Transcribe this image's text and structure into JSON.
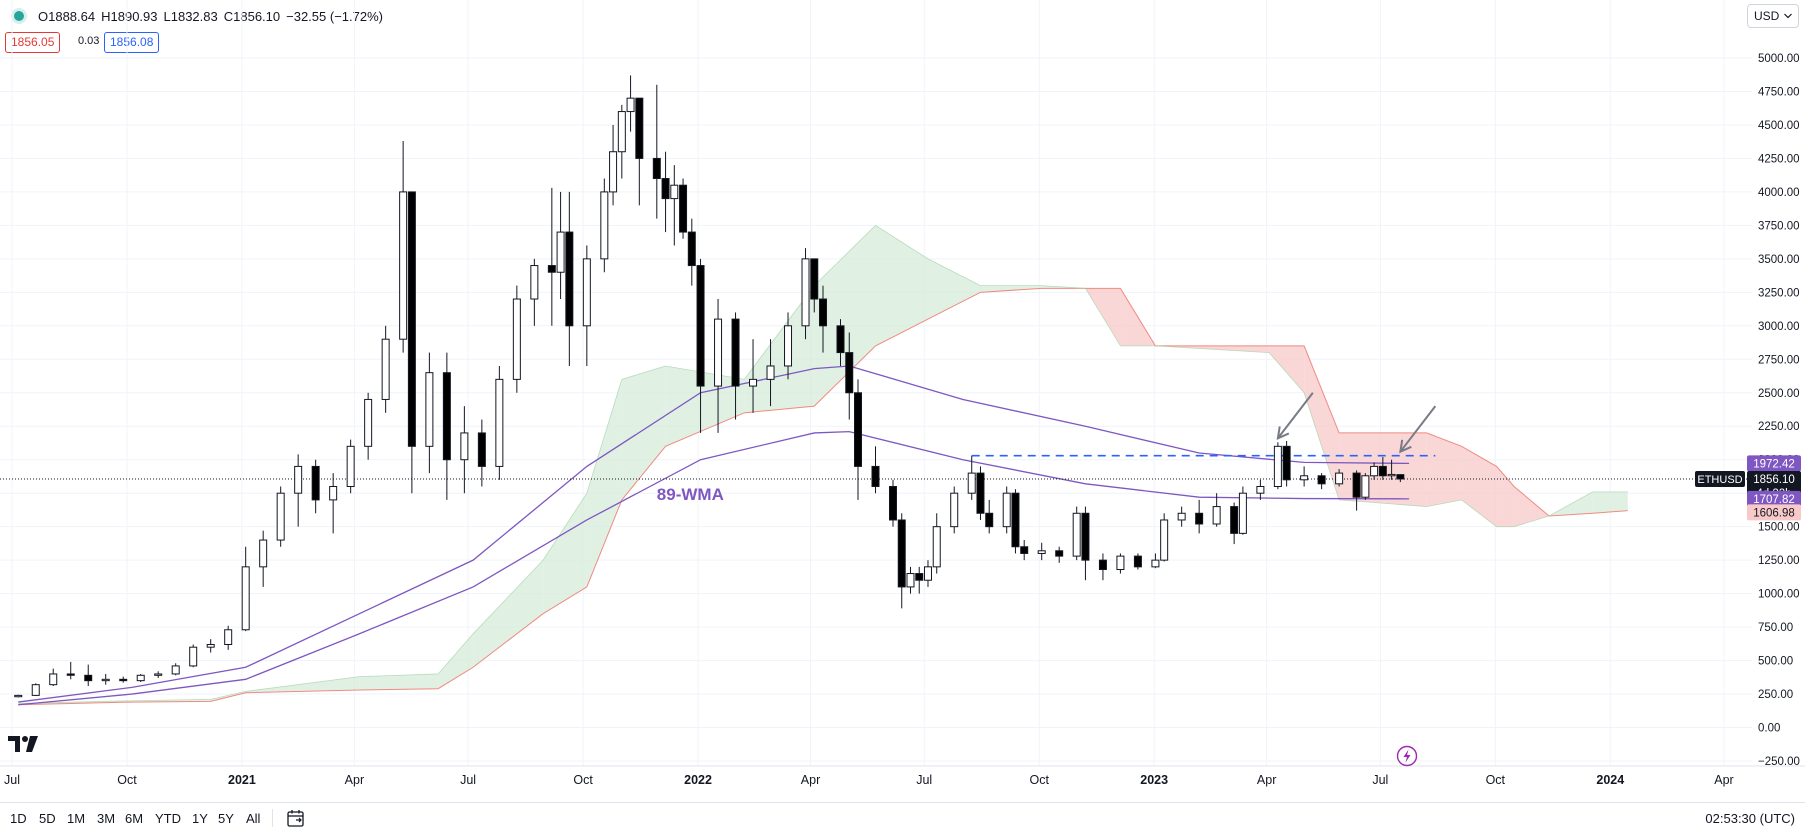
{
  "header": {
    "open": "O1888.64",
    "high": "H1890.93",
    "low": "L1832.83",
    "close": "C1856.10",
    "change": "−32.55 (−1.72%)",
    "bid": "1856.05",
    "spread": "0.03",
    "ask": "1856.08",
    "currency": "USD"
  },
  "range_buttons": [
    "1D",
    "5D",
    "1M",
    "3M",
    "6M",
    "YTD",
    "1Y",
    "5Y",
    "All"
  ],
  "time_readout": "02:53:30 (UTC)",
  "colors": {
    "up_fill": "#ffffff",
    "down_fill": "#000000",
    "wma": "#7e57c2",
    "cloud_bear": "#f8c9c9",
    "cloud_bull": "#d6ecd9",
    "cloud_line": "#f08a80",
    "dashed_line": "#2962ff",
    "text_red": "#e53935",
    "text_blue": "#2962ff"
  },
  "chart_data": {
    "type": "candlestick",
    "symbol": "ETHUSD",
    "timeframe": "weekly",
    "ylim": [
      -250,
      5000
    ],
    "y_ticks": [
      "5000.00",
      "4750.00",
      "4500.00",
      "4250.00",
      "4000.00",
      "3750.00",
      "3500.00",
      "3250.00",
      "3000.00",
      "2750.00",
      "2500.00",
      "2250.00",
      "2000.00",
      "1750.00",
      "1500.00",
      "1250.00",
      "1000.00",
      "750.00",
      "500.00",
      "250.00",
      "0.00",
      "−250.00"
    ],
    "x_ticks": [
      {
        "label": "Jul",
        "date": "2020-07-01"
      },
      {
        "label": "Oct",
        "date": "2020-10-01"
      },
      {
        "label": "2021",
        "date": "2021-01-01",
        "bold": true
      },
      {
        "label": "Apr",
        "date": "2021-04-01"
      },
      {
        "label": "Jul",
        "date": "2021-07-01"
      },
      {
        "label": "Oct",
        "date": "2021-10-01"
      },
      {
        "label": "2022",
        "date": "2022-01-01",
        "bold": true
      },
      {
        "label": "Apr",
        "date": "2022-04-01"
      },
      {
        "label": "Jul",
        "date": "2022-07-01"
      },
      {
        "label": "Oct",
        "date": "2022-10-01"
      },
      {
        "label": "2023",
        "date": "2023-01-01",
        "bold": true
      },
      {
        "label": "Apr",
        "date": "2023-04-01"
      },
      {
        "label": "Jul",
        "date": "2023-07-01"
      },
      {
        "label": "Oct",
        "date": "2023-10-01"
      },
      {
        "label": "2024",
        "date": "2024-01-01",
        "bold": true
      },
      {
        "label": "Apr",
        "date": "2024-04-01"
      }
    ],
    "candles": [
      {
        "date": "2020-07-06",
        "o": 230,
        "h": 245,
        "l": 225,
        "c": 240
      },
      {
        "date": "2020-07-20",
        "o": 240,
        "h": 330,
        "l": 235,
        "c": 320
      },
      {
        "date": "2020-08-03",
        "o": 320,
        "h": 440,
        "l": 310,
        "c": 400
      },
      {
        "date": "2020-08-17",
        "o": 400,
        "h": 490,
        "l": 360,
        "c": 390
      },
      {
        "date": "2020-08-31",
        "o": 390,
        "h": 470,
        "l": 310,
        "c": 350
      },
      {
        "date": "2020-09-14",
        "o": 350,
        "h": 400,
        "l": 320,
        "c": 360
      },
      {
        "date": "2020-09-28",
        "o": 360,
        "h": 380,
        "l": 335,
        "c": 350
      },
      {
        "date": "2020-10-12",
        "o": 350,
        "h": 400,
        "l": 340,
        "c": 390
      },
      {
        "date": "2020-10-26",
        "o": 390,
        "h": 420,
        "l": 370,
        "c": 400
      },
      {
        "date": "2020-11-09",
        "o": 400,
        "h": 480,
        "l": 390,
        "c": 460
      },
      {
        "date": "2020-11-23",
        "o": 460,
        "h": 620,
        "l": 450,
        "c": 600
      },
      {
        "date": "2020-12-07",
        "o": 600,
        "h": 660,
        "l": 560,
        "c": 620
      },
      {
        "date": "2020-12-21",
        "o": 620,
        "h": 760,
        "l": 580,
        "c": 730
      },
      {
        "date": "2021-01-04",
        "o": 730,
        "h": 1350,
        "l": 720,
        "c": 1200
      },
      {
        "date": "2021-01-18",
        "o": 1200,
        "h": 1470,
        "l": 1050,
        "c": 1400
      },
      {
        "date": "2021-02-01",
        "o": 1400,
        "h": 1800,
        "l": 1350,
        "c": 1750
      },
      {
        "date": "2021-02-15",
        "o": 1750,
        "h": 2040,
        "l": 1500,
        "c": 1950
      },
      {
        "date": "2021-03-01",
        "o": 1950,
        "h": 2000,
        "l": 1600,
        "c": 1700
      },
      {
        "date": "2021-03-15",
        "o": 1700,
        "h": 1900,
        "l": 1450,
        "c": 1800
      },
      {
        "date": "2021-03-29",
        "o": 1800,
        "h": 2150,
        "l": 1750,
        "c": 2100
      },
      {
        "date": "2021-04-12",
        "o": 2100,
        "h": 2500,
        "l": 2000,
        "c": 2450
      },
      {
        "date": "2021-04-26",
        "o": 2450,
        "h": 3000,
        "l": 2350,
        "c": 2900
      },
      {
        "date": "2021-05-10",
        "o": 2900,
        "h": 4380,
        "l": 2800,
        "c": 4000
      },
      {
        "date": "2021-05-17",
        "o": 4000,
        "h": 4000,
        "l": 1750,
        "c": 2100
      },
      {
        "date": "2021-05-31",
        "o": 2100,
        "h": 2800,
        "l": 1900,
        "c": 2650
      },
      {
        "date": "2021-06-14",
        "o": 2650,
        "h": 2800,
        "l": 1700,
        "c": 2000
      },
      {
        "date": "2021-06-28",
        "o": 2000,
        "h": 2400,
        "l": 1750,
        "c": 2200
      },
      {
        "date": "2021-07-12",
        "o": 2200,
        "h": 2300,
        "l": 1800,
        "c": 1950
      },
      {
        "date": "2021-07-26",
        "o": 1950,
        "h": 2700,
        "l": 1850,
        "c": 2600
      },
      {
        "date": "2021-08-09",
        "o": 2600,
        "h": 3300,
        "l": 2500,
        "c": 3200
      },
      {
        "date": "2021-08-23",
        "o": 3200,
        "h": 3500,
        "l": 3000,
        "c": 3450
      },
      {
        "date": "2021-09-06",
        "o": 3450,
        "h": 4030,
        "l": 3000,
        "c": 3400
      },
      {
        "date": "2021-09-13",
        "o": 3400,
        "h": 4000,
        "l": 3200,
        "c": 3700
      },
      {
        "date": "2021-09-20",
        "o": 3700,
        "h": 4000,
        "l": 2700,
        "c": 3000
      },
      {
        "date": "2021-10-04",
        "o": 3000,
        "h": 3600,
        "l": 2700,
        "c": 3500
      },
      {
        "date": "2021-10-18",
        "o": 3500,
        "h": 4100,
        "l": 3400,
        "c": 4000
      },
      {
        "date": "2021-10-25",
        "o": 4000,
        "h": 4500,
        "l": 3900,
        "c": 4300
      },
      {
        "date": "2021-11-01",
        "o": 4300,
        "h": 4650,
        "l": 4100,
        "c": 4600
      },
      {
        "date": "2021-11-08",
        "o": 4600,
        "h": 4870,
        "l": 4450,
        "c": 4700
      },
      {
        "date": "2021-11-15",
        "o": 4700,
        "h": 4700,
        "l": 3900,
        "c": 4250
      },
      {
        "date": "2021-11-29",
        "o": 4250,
        "h": 4800,
        "l": 3800,
        "c": 4100
      },
      {
        "date": "2021-12-06",
        "o": 4100,
        "h": 4300,
        "l": 3700,
        "c": 3950
      },
      {
        "date": "2021-12-13",
        "o": 3950,
        "h": 4200,
        "l": 3600,
        "c": 4050
      },
      {
        "date": "2021-12-20",
        "o": 4050,
        "h": 4100,
        "l": 3650,
        "c": 3700
      },
      {
        "date": "2021-12-27",
        "o": 3700,
        "h": 3800,
        "l": 3300,
        "c": 3450
      },
      {
        "date": "2022-01-03",
        "o": 3450,
        "h": 3500,
        "l": 2200,
        "c": 2550
      },
      {
        "date": "2022-01-17",
        "o": 2550,
        "h": 3200,
        "l": 2200,
        "c": 3050
      },
      {
        "date": "2022-01-31",
        "o": 3050,
        "h": 3100,
        "l": 2300,
        "c": 2550
      },
      {
        "date": "2022-02-14",
        "o": 2550,
        "h": 2900,
        "l": 2350,
        "c": 2600
      },
      {
        "date": "2022-02-28",
        "o": 2600,
        "h": 2900,
        "l": 2400,
        "c": 2700
      },
      {
        "date": "2022-03-14",
        "o": 2700,
        "h": 3100,
        "l": 2600,
        "c": 3000
      },
      {
        "date": "2022-03-28",
        "o": 3000,
        "h": 3580,
        "l": 2900,
        "c": 3500
      },
      {
        "date": "2022-04-04",
        "o": 3500,
        "h": 3500,
        "l": 3100,
        "c": 3200
      },
      {
        "date": "2022-04-11",
        "o": 3200,
        "h": 3300,
        "l": 2800,
        "c": 3000
      },
      {
        "date": "2022-04-25",
        "o": 3000,
        "h": 3050,
        "l": 2700,
        "c": 2800
      },
      {
        "date": "2022-05-02",
        "o": 2800,
        "h": 2950,
        "l": 2300,
        "c": 2500
      },
      {
        "date": "2022-05-09",
        "o": 2500,
        "h": 2600,
        "l": 1700,
        "c": 1950
      },
      {
        "date": "2022-05-23",
        "o": 1950,
        "h": 2100,
        "l": 1750,
        "c": 1800
      },
      {
        "date": "2022-06-06",
        "o": 1800,
        "h": 1850,
        "l": 1500,
        "c": 1550
      },
      {
        "date": "2022-06-13",
        "o": 1550,
        "h": 1600,
        "l": 890,
        "c": 1050
      },
      {
        "date": "2022-06-20",
        "o": 1050,
        "h": 1200,
        "l": 1000,
        "c": 1150
      },
      {
        "date": "2022-06-27",
        "o": 1150,
        "h": 1200,
        "l": 1000,
        "c": 1100
      },
      {
        "date": "2022-07-04",
        "o": 1100,
        "h": 1250,
        "l": 1050,
        "c": 1200
      },
      {
        "date": "2022-07-11",
        "o": 1200,
        "h": 1600,
        "l": 1150,
        "c": 1500
      },
      {
        "date": "2022-07-25",
        "o": 1500,
        "h": 1800,
        "l": 1450,
        "c": 1750
      },
      {
        "date": "2022-08-08",
        "o": 1750,
        "h": 2030,
        "l": 1700,
        "c": 1900
      },
      {
        "date": "2022-08-15",
        "o": 1900,
        "h": 1950,
        "l": 1550,
        "c": 1600
      },
      {
        "date": "2022-08-22",
        "o": 1600,
        "h": 1700,
        "l": 1450,
        "c": 1500
      },
      {
        "date": "2022-09-05",
        "o": 1500,
        "h": 1800,
        "l": 1450,
        "c": 1750
      },
      {
        "date": "2022-09-12",
        "o": 1750,
        "h": 1780,
        "l": 1300,
        "c": 1350
      },
      {
        "date": "2022-09-19",
        "o": 1350,
        "h": 1400,
        "l": 1250,
        "c": 1300
      },
      {
        "date": "2022-10-03",
        "o": 1300,
        "h": 1380,
        "l": 1250,
        "c": 1320
      },
      {
        "date": "2022-10-17",
        "o": 1320,
        "h": 1350,
        "l": 1230,
        "c": 1280
      },
      {
        "date": "2022-10-31",
        "o": 1280,
        "h": 1650,
        "l": 1250,
        "c": 1600
      },
      {
        "date": "2022-11-07",
        "o": 1600,
        "h": 1650,
        "l": 1100,
        "c": 1250
      },
      {
        "date": "2022-11-21",
        "o": 1250,
        "h": 1300,
        "l": 1100,
        "c": 1180
      },
      {
        "date": "2022-12-05",
        "o": 1180,
        "h": 1300,
        "l": 1150,
        "c": 1280
      },
      {
        "date": "2022-12-19",
        "o": 1280,
        "h": 1300,
        "l": 1180,
        "c": 1200
      },
      {
        "date": "2023-01-02",
        "o": 1200,
        "h": 1300,
        "l": 1190,
        "c": 1250
      },
      {
        "date": "2023-01-09",
        "o": 1250,
        "h": 1600,
        "l": 1240,
        "c": 1550
      },
      {
        "date": "2023-01-23",
        "o": 1550,
        "h": 1650,
        "l": 1500,
        "c": 1600
      },
      {
        "date": "2023-02-06",
        "o": 1600,
        "h": 1700,
        "l": 1450,
        "c": 1520
      },
      {
        "date": "2023-02-20",
        "o": 1520,
        "h": 1750,
        "l": 1500,
        "c": 1650
      },
      {
        "date": "2023-03-06",
        "o": 1650,
        "h": 1680,
        "l": 1370,
        "c": 1450
      },
      {
        "date": "2023-03-13",
        "o": 1450,
        "h": 1800,
        "l": 1440,
        "c": 1750
      },
      {
        "date": "2023-03-27",
        "o": 1750,
        "h": 1850,
        "l": 1700,
        "c": 1800
      },
      {
        "date": "2023-04-10",
        "o": 1800,
        "h": 2130,
        "l": 1780,
        "c": 2100
      },
      {
        "date": "2023-04-17",
        "o": 2100,
        "h": 2140,
        "l": 1800,
        "c": 1850
      },
      {
        "date": "2023-05-01",
        "o": 1850,
        "h": 1950,
        "l": 1800,
        "c": 1880
      },
      {
        "date": "2023-05-15",
        "o": 1880,
        "h": 1900,
        "l": 1780,
        "c": 1820
      },
      {
        "date": "2023-05-29",
        "o": 1820,
        "h": 1930,
        "l": 1800,
        "c": 1900
      },
      {
        "date": "2023-06-12",
        "o": 1900,
        "h": 1920,
        "l": 1620,
        "c": 1720
      },
      {
        "date": "2023-06-19",
        "o": 1720,
        "h": 1900,
        "l": 1700,
        "c": 1880
      },
      {
        "date": "2023-06-26",
        "o": 1880,
        "h": 1980,
        "l": 1850,
        "c": 1950
      },
      {
        "date": "2023-07-03",
        "o": 1950,
        "h": 2020,
        "l": 1850,
        "c": 1880
      },
      {
        "date": "2023-07-10",
        "o": 1880,
        "h": 2000,
        "l": 1850,
        "c": 1890
      },
      {
        "date": "2023-07-17",
        "o": 1888.64,
        "h": 1890.93,
        "l": 1832.83,
        "c": 1856.1
      }
    ],
    "wma_89": [
      [
        "2020-07-06",
        170
      ],
      [
        "2020-10-05",
        250
      ],
      [
        "2021-01-04",
        360
      ],
      [
        "2021-04-05",
        700
      ],
      [
        "2021-07-05",
        1050
      ],
      [
        "2021-10-04",
        1550
      ],
      [
        "2022-01-03",
        2000
      ],
      [
        "2022-04-04",
        2200
      ],
      [
        "2022-05-02",
        2210
      ],
      [
        "2022-08-01",
        2000
      ],
      [
        "2022-11-07",
        1820
      ],
      [
        "2023-02-06",
        1720
      ],
      [
        "2023-05-01",
        1710
      ],
      [
        "2023-07-24",
        1707.82
      ]
    ],
    "wma_50": [
      [
        "2020-07-06",
        190
      ],
      [
        "2020-10-05",
        300
      ],
      [
        "2021-01-04",
        450
      ],
      [
        "2021-04-05",
        850
      ],
      [
        "2021-07-05",
        1250
      ],
      [
        "2021-10-04",
        1950
      ],
      [
        "2022-01-03",
        2500
      ],
      [
        "2022-04-04",
        2680
      ],
      [
        "2022-05-02",
        2700
      ],
      [
        "2022-08-01",
        2450
      ],
      [
        "2022-11-07",
        2250
      ],
      [
        "2023-02-06",
        2050
      ],
      [
        "2023-05-01",
        1980
      ],
      [
        "2023-07-24",
        1972.42
      ]
    ],
    "cloud": [
      {
        "date": "2020-07-06",
        "a": 180,
        "b": 170
      },
      {
        "date": "2020-10-05",
        "a": 200,
        "b": 190
      },
      {
        "date": "2020-12-07",
        "a": 210,
        "b": 195
      },
      {
        "date": "2021-01-04",
        "a": 270,
        "b": 260
      },
      {
        "date": "2021-04-05",
        "a": 380,
        "b": 280
      },
      {
        "date": "2021-06-07",
        "a": 400,
        "b": 290
      },
      {
        "date": "2021-07-05",
        "a": 700,
        "b": 450
      },
      {
        "date": "2021-08-30",
        "a": 1250,
        "b": 850
      },
      {
        "date": "2021-10-04",
        "a": 1750,
        "b": 1050
      },
      {
        "date": "2021-11-01",
        "a": 2600,
        "b": 1700
      },
      {
        "date": "2021-12-06",
        "a": 2700,
        "b": 2100
      },
      {
        "date": "2022-02-07",
        "a": 2600,
        "b": 2350
      },
      {
        "date": "2022-04-04",
        "a": 3300,
        "b": 2400
      },
      {
        "date": "2022-05-23",
        "a": 3750,
        "b": 2850
      },
      {
        "date": "2022-07-04",
        "a": 3500,
        "b": 3050
      },
      {
        "date": "2022-08-15",
        "a": 3300,
        "b": 3250
      },
      {
        "date": "2022-10-03",
        "a": 3300,
        "b": 3280
      },
      {
        "date": "2022-11-07",
        "a": 3280,
        "b": 3280
      },
      {
        "date": "2022-12-05",
        "a": 2850,
        "b": 3280
      },
      {
        "date": "2023-01-02",
        "a": 2850,
        "b": 2850
      },
      {
        "date": "2023-04-03",
        "a": 2800,
        "b": 2850
      },
      {
        "date": "2023-05-01",
        "a": 2500,
        "b": 2850
      },
      {
        "date": "2023-05-29",
        "a": 1700,
        "b": 2200
      },
      {
        "date": "2023-08-07",
        "a": 1650,
        "b": 2200
      },
      {
        "date": "2023-09-04",
        "a": 1700,
        "b": 2100
      },
      {
        "date": "2023-10-02",
        "a": 1500,
        "b": 1950
      },
      {
        "date": "2023-10-16",
        "a": 1500,
        "b": 1800
      },
      {
        "date": "2023-11-13",
        "a": 1580,
        "b": 1580
      },
      {
        "date": "2023-12-18",
        "a": 1760,
        "b": 1600
      },
      {
        "date": "2024-01-15",
        "a": 1760,
        "b": 1620
      }
    ],
    "resistance": {
      "value": 2030,
      "from": "2022-08-08",
      "to": "2023-08-14"
    },
    "current_price": 1856.1,
    "annotation": "89-WMA",
    "annotation_at": {
      "date": "2021-11-29",
      "value": 1700
    },
    "arrows": [
      {
        "from_date": "2023-05-08",
        "from_value": 2500,
        "to_date": "2023-04-10",
        "to_value": 2160
      },
      {
        "from_date": "2023-08-14",
        "from_value": 2400,
        "to_date": "2023-07-17",
        "to_value": 2060
      }
    ],
    "axis_labels": [
      {
        "text": "1972.42",
        "value": 1972.42,
        "bg": "#7e57c2",
        "color": "#ffffff"
      },
      {
        "text": "1856.10",
        "value": 1856.1,
        "bg": "#131722",
        "color": "#ffffff",
        "sub": "4d 22h"
      },
      {
        "text": "1707.82",
        "value": 1707.82,
        "bg": "#7e57c2",
        "color": "#ffffff"
      },
      {
        "text": "1606.98",
        "value": 1606.98,
        "bg": "#f8c9c9",
        "color": "#131722"
      }
    ],
    "symbol_tag": "ETHUSD"
  }
}
